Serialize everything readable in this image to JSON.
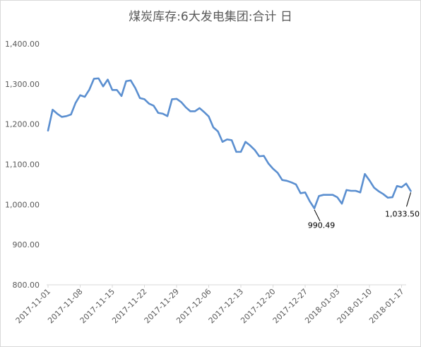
{
  "chart_data": {
    "type": "line",
    "title": "煤炭库存:6大发电集团:合计 日",
    "xlabel": "",
    "ylabel": "",
    "ylim": [
      800,
      1400
    ],
    "yticks": [
      "800.00",
      "900.00",
      "1,000.00",
      "1,100.00",
      "1,200.00",
      "1,300.00",
      "1,400.00"
    ],
    "ytick_values": [
      800,
      900,
      1000,
      1100,
      1200,
      1300,
      1400
    ],
    "grid": false,
    "legend": "none",
    "line_color": "#5b8fd0",
    "x_start": "2017-11-01",
    "xticks": [
      "2017-11-01",
      "2017-11-08",
      "2017-11-15",
      "2017-11-22",
      "2017-11-29",
      "2017-12-06",
      "2017-12-13",
      "2017-12-20",
      "2017-12-27",
      "2018-01-03",
      "2018-01-10",
      "2018-01-17"
    ],
    "x": [
      "2017-11-01",
      "2017-11-02",
      "2017-11-03",
      "2017-11-04",
      "2017-11-05",
      "2017-11-06",
      "2017-11-07",
      "2017-11-08",
      "2017-11-09",
      "2017-11-10",
      "2017-11-11",
      "2017-11-12",
      "2017-11-13",
      "2017-11-14",
      "2017-11-15",
      "2017-11-16",
      "2017-11-17",
      "2017-11-18",
      "2017-11-19",
      "2017-11-20",
      "2017-11-21",
      "2017-11-22",
      "2017-11-23",
      "2017-11-24",
      "2017-11-25",
      "2017-11-26",
      "2017-11-27",
      "2017-11-28",
      "2017-11-29",
      "2017-11-30",
      "2017-12-01",
      "2017-12-02",
      "2017-12-03",
      "2017-12-04",
      "2017-12-05",
      "2017-12-06",
      "2017-12-07",
      "2017-12-08",
      "2017-12-09",
      "2017-12-10",
      "2017-12-11",
      "2017-12-12",
      "2017-12-13",
      "2017-12-14",
      "2017-12-15",
      "2017-12-16",
      "2017-12-17",
      "2017-12-18",
      "2017-12-19",
      "2017-12-20",
      "2017-12-21",
      "2017-12-22",
      "2017-12-23",
      "2017-12-24",
      "2017-12-25",
      "2017-12-26",
      "2017-12-27",
      "2017-12-28",
      "2017-12-29",
      "2017-12-30",
      "2017-12-31",
      "2018-01-01",
      "2018-01-02",
      "2018-01-03",
      "2018-01-04",
      "2018-01-05",
      "2018-01-06",
      "2018-01-07",
      "2018-01-08",
      "2018-01-09",
      "2018-01-10",
      "2018-01-11",
      "2018-01-12",
      "2018-01-13",
      "2018-01-14",
      "2018-01-15",
      "2018-01-16",
      "2018-01-17",
      "2018-01-18",
      "2018-01-19"
    ],
    "values": [
      1184,
      1236,
      1226,
      1218,
      1220,
      1224,
      1253,
      1272,
      1268,
      1286,
      1313,
      1314,
      1294,
      1311,
      1285,
      1285,
      1270,
      1307,
      1309,
      1290,
      1265,
      1262,
      1251,
      1246,
      1228,
      1226,
      1220,
      1262,
      1263,
      1255,
      1242,
      1232,
      1232,
      1240,
      1230,
      1219,
      1192,
      1182,
      1156,
      1162,
      1160,
      1131,
      1131,
      1156,
      1147,
      1136,
      1120,
      1121,
      1102,
      1089,
      1079,
      1061,
      1059,
      1055,
      1050,
      1028,
      1030,
      1008,
      990.49,
      1021,
      1024,
      1024,
      1024,
      1018,
      1002,
      1036,
      1034,
      1034,
      1030,
      1076,
      1060,
      1042,
      1033,
      1026,
      1017,
      1018,
      1046,
      1043,
      1052,
      1033.5
    ],
    "annotations": [
      {
        "label": "990.49",
        "x": "2017-12-29",
        "y": 990.49
      },
      {
        "label": "1,033.50",
        "x": "2018-01-19",
        "y": 1033.5
      }
    ]
  }
}
